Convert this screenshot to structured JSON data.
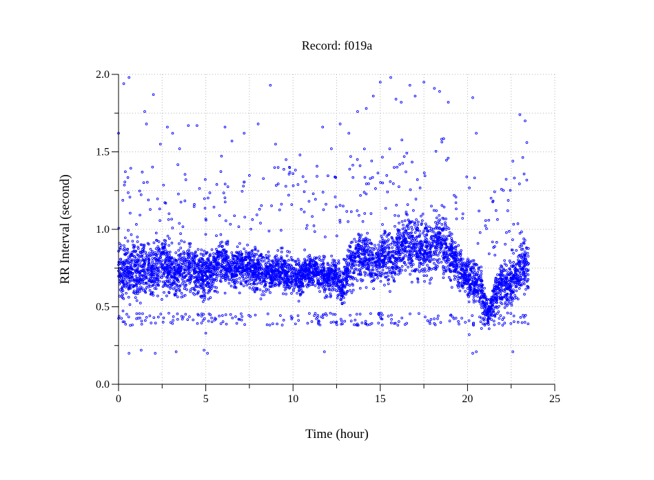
{
  "chart_data": {
    "type": "scatter",
    "title": "Record:  f019a",
    "xlabel": "Time (hour)",
    "ylabel": "RR Interval (second)",
    "xlim": [
      0,
      25
    ],
    "ylim": [
      0.0,
      2.0
    ],
    "xticks": [
      "0",
      "5",
      "10",
      "15",
      "20",
      "25"
    ],
    "yticks": [
      "0.0",
      "0.5",
      "1.0",
      "1.5",
      "2.0"
    ],
    "grid": true,
    "marker": "hollow circle",
    "series": [
      {
        "color": "#0000ff",
        "x": [
          0.0,
          0.4,
          0.8,
          1.2,
          1.6,
          2.0,
          2.4,
          2.8,
          3.2,
          3.6,
          4.0,
          4.4,
          4.8,
          5.2,
          5.6,
          6.0,
          6.4,
          6.8,
          7.2,
          7.6,
          8.0,
          8.4,
          8.8,
          9.2,
          9.6,
          10.0,
          10.4,
          10.8,
          11.2,
          11.6,
          12.0,
          12.4,
          12.8,
          13.2,
          13.6,
          14.0,
          14.4,
          14.8,
          15.2,
          15.6,
          16.0,
          16.4,
          16.8,
          17.2,
          17.6,
          18.0,
          18.4,
          18.8,
          19.2,
          19.6,
          20.0,
          20.4,
          20.8,
          21.2,
          21.6,
          22.0,
          22.4,
          22.8,
          23.2,
          23.5
        ],
        "y": [
          0.74,
          0.72,
          0.76,
          0.73,
          0.75,
          0.74,
          0.78,
          0.76,
          0.72,
          0.74,
          0.76,
          0.73,
          0.7,
          0.72,
          0.78,
          0.8,
          0.76,
          0.74,
          0.77,
          0.75,
          0.73,
          0.71,
          0.72,
          0.74,
          0.7,
          0.71,
          0.69,
          0.72,
          0.74,
          0.7,
          0.68,
          0.72,
          0.62,
          0.76,
          0.82,
          0.84,
          0.8,
          0.78,
          0.86,
          0.82,
          0.84,
          0.92,
          0.88,
          0.9,
          0.86,
          0.88,
          0.96,
          0.86,
          0.8,
          0.74,
          0.7,
          0.66,
          0.62,
          0.46,
          0.58,
          0.66,
          0.64,
          0.7,
          0.78,
          0.76
        ],
        "spread": [
          0.18,
          0.18,
          0.17,
          0.17,
          0.16,
          0.16,
          0.16,
          0.15,
          0.15,
          0.15,
          0.14,
          0.14,
          0.14,
          0.14,
          0.13,
          0.12,
          0.12,
          0.12,
          0.12,
          0.12,
          0.12,
          0.11,
          0.11,
          0.1,
          0.1,
          0.1,
          0.1,
          0.09,
          0.09,
          0.09,
          0.09,
          0.1,
          0.12,
          0.14,
          0.14,
          0.14,
          0.13,
          0.13,
          0.14,
          0.15,
          0.15,
          0.17,
          0.18,
          0.17,
          0.16,
          0.16,
          0.17,
          0.15,
          0.12,
          0.11,
          0.11,
          0.11,
          0.12,
          0.06,
          0.11,
          0.12,
          0.13,
          0.15,
          0.16,
          0.16
        ],
        "outliers": [
          [
            0.0,
            1.62
          ],
          [
            0.3,
            1.94
          ],
          [
            0.6,
            1.98
          ],
          [
            1.5,
            1.76
          ],
          [
            1.6,
            1.68
          ],
          [
            2.0,
            1.87
          ],
          [
            2.4,
            1.55
          ],
          [
            2.8,
            1.66
          ],
          [
            3.1,
            1.62
          ],
          [
            3.5,
            1.52
          ],
          [
            4.0,
            1.67
          ],
          [
            4.5,
            1.67
          ],
          [
            6.1,
            1.66
          ],
          [
            6.5,
            1.57
          ],
          [
            7.2,
            1.62
          ],
          [
            8.0,
            1.68
          ],
          [
            8.7,
            1.93
          ],
          [
            9.0,
            1.55
          ],
          [
            9.6,
            1.45
          ],
          [
            10.4,
            1.48
          ],
          [
            11.7,
            1.66
          ],
          [
            12.2,
            1.52
          ],
          [
            12.7,
            1.68
          ],
          [
            13.2,
            1.62
          ],
          [
            13.7,
            1.76
          ],
          [
            14.2,
            1.78
          ],
          [
            14.6,
            1.86
          ],
          [
            15.0,
            1.95
          ],
          [
            15.6,
            1.98
          ],
          [
            15.9,
            1.84
          ],
          [
            16.2,
            1.82
          ],
          [
            16.7,
            1.93
          ],
          [
            17.0,
            1.86
          ],
          [
            17.5,
            1.95
          ],
          [
            18.1,
            1.91
          ],
          [
            18.4,
            1.89
          ],
          [
            18.9,
            1.82
          ],
          [
            20.3,
            1.85
          ],
          [
            20.5,
            1.62
          ],
          [
            22.6,
            1.44
          ],
          [
            23.0,
            1.74
          ],
          [
            23.3,
            1.7
          ],
          [
            23.4,
            1.56
          ],
          [
            0.6,
            0.2
          ],
          [
            1.3,
            0.22
          ],
          [
            2.1,
            0.2
          ],
          [
            3.3,
            0.21
          ],
          [
            4.9,
            0.22
          ],
          [
            5.1,
            0.2
          ],
          [
            11.8,
            0.21
          ],
          [
            20.3,
            0.2
          ],
          [
            20.5,
            0.21
          ],
          [
            22.6,
            0.21
          ],
          [
            5.0,
            0.33
          ],
          [
            20.1,
            0.32
          ],
          [
            20.8,
            0.36
          ]
        ]
      }
    ]
  }
}
